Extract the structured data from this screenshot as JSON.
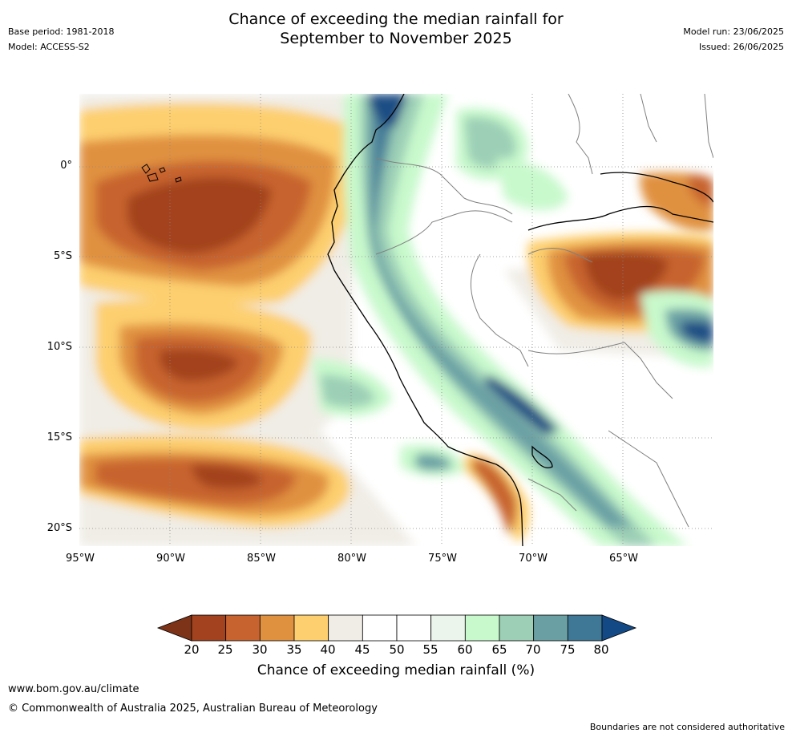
{
  "header": {
    "title_line1": "Chance of exceeding the median rainfall for",
    "title_line2": "September to November 2025",
    "base_period": "Base period: 1981-2018",
    "model": "Model: ACCESS-S2",
    "model_run": "Model run: 23/06/2025",
    "issued": "Issued: 26/06/2025"
  },
  "map": {
    "lat_labels": [
      "0°",
      "5°S",
      "10°S",
      "15°S",
      "20°S"
    ],
    "lon_labels": [
      "95°W",
      "90°W",
      "85°W",
      "80°W",
      "75°W",
      "70°W",
      "65°W"
    ]
  },
  "colorbar": {
    "title": "Chance of exceeding median rainfall (%)",
    "ticks": [
      "20",
      "25",
      "30",
      "35",
      "40",
      "45",
      "50",
      "55",
      "60",
      "65",
      "70",
      "75",
      "80"
    ],
    "colors": [
      "#a3421f",
      "#c7632f",
      "#e0913f",
      "#fdcf6e",
      "#f0ede6",
      "#ffffff",
      "#ffffff",
      "#ebf5ec",
      "#c8f9cc",
      "#9ccfb6",
      "#6aa0a4",
      "#3f7796",
      "#1c4d84"
    ],
    "low_color": "#7d3318",
    "high_color": "#134a85"
  },
  "footer": {
    "url": "www.bom.gov.au/climate",
    "copyright": "© Commonwealth of Australia 2025, Australian Bureau of Meteorology",
    "disclaimer": "Boundaries are not considered authoritative"
  }
}
